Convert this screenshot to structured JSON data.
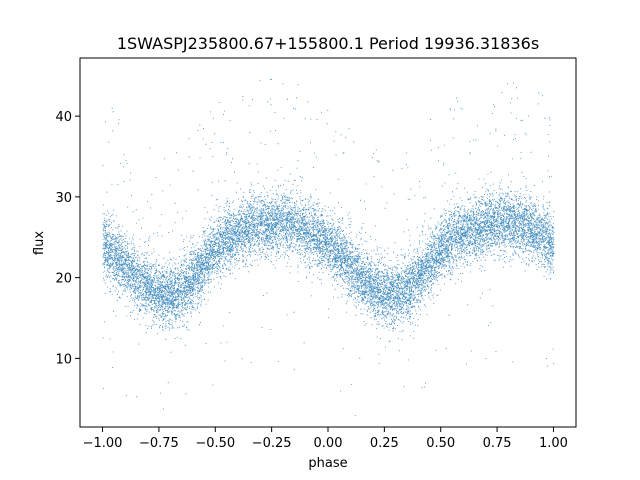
{
  "chart_data": {
    "type": "scatter",
    "title": "1SWASPJ235800.67+155800.1 Period 19936.31836s",
    "xlabel": "phase",
    "ylabel": "flux",
    "xlim": [
      -1.1,
      1.1
    ],
    "ylim": [
      1.5,
      47.2
    ],
    "xticks": [
      -1.0,
      -0.75,
      -0.5,
      -0.25,
      0.0,
      0.25,
      0.5,
      0.75,
      1.0
    ],
    "xtick_labels": [
      "−1.00",
      "−0.75",
      "−0.50",
      "−0.25",
      "0.00",
      "0.25",
      "0.50",
      "0.75",
      "1.00"
    ],
    "yticks": [
      10,
      20,
      30,
      40
    ],
    "ytick_labels": [
      "10",
      "20",
      "30",
      "40"
    ],
    "grid": false,
    "point_color": "#1f77b4",
    "model": {
      "description_points_phase": [
        -1.0,
        -0.95,
        -0.9,
        -0.85,
        -0.8,
        -0.75,
        -0.7,
        -0.65,
        -0.6,
        -0.55,
        -0.5,
        -0.45,
        -0.4,
        -0.35,
        -0.3,
        -0.25,
        -0.2,
        -0.15,
        -0.1,
        -0.05,
        0.0,
        0.05,
        0.1,
        0.15,
        0.2,
        0.25,
        0.3,
        0.35,
        0.4,
        0.45,
        0.5,
        0.55,
        0.6,
        0.65,
        0.7,
        0.75,
        0.8,
        0.85,
        0.9,
        0.95,
        1.0
      ],
      "mean_flux": [
        24.0,
        23.0,
        21.5,
        20.0,
        18.8,
        18.0,
        17.8,
        18.5,
        20.0,
        21.8,
        23.5,
        24.8,
        25.6,
        26.2,
        26.6,
        26.8,
        26.9,
        26.6,
        26.0,
        25.2,
        24.0,
        23.0,
        21.5,
        20.0,
        18.8,
        18.0,
        17.8,
        18.5,
        20.0,
        21.8,
        23.5,
        24.8,
        25.6,
        26.2,
        26.6,
        26.8,
        26.9,
        26.6,
        26.0,
        25.2,
        24.0
      ],
      "scatter_sigma": 1.9,
      "outlier_fraction": 0.03,
      "n_points": 14000
    }
  }
}
